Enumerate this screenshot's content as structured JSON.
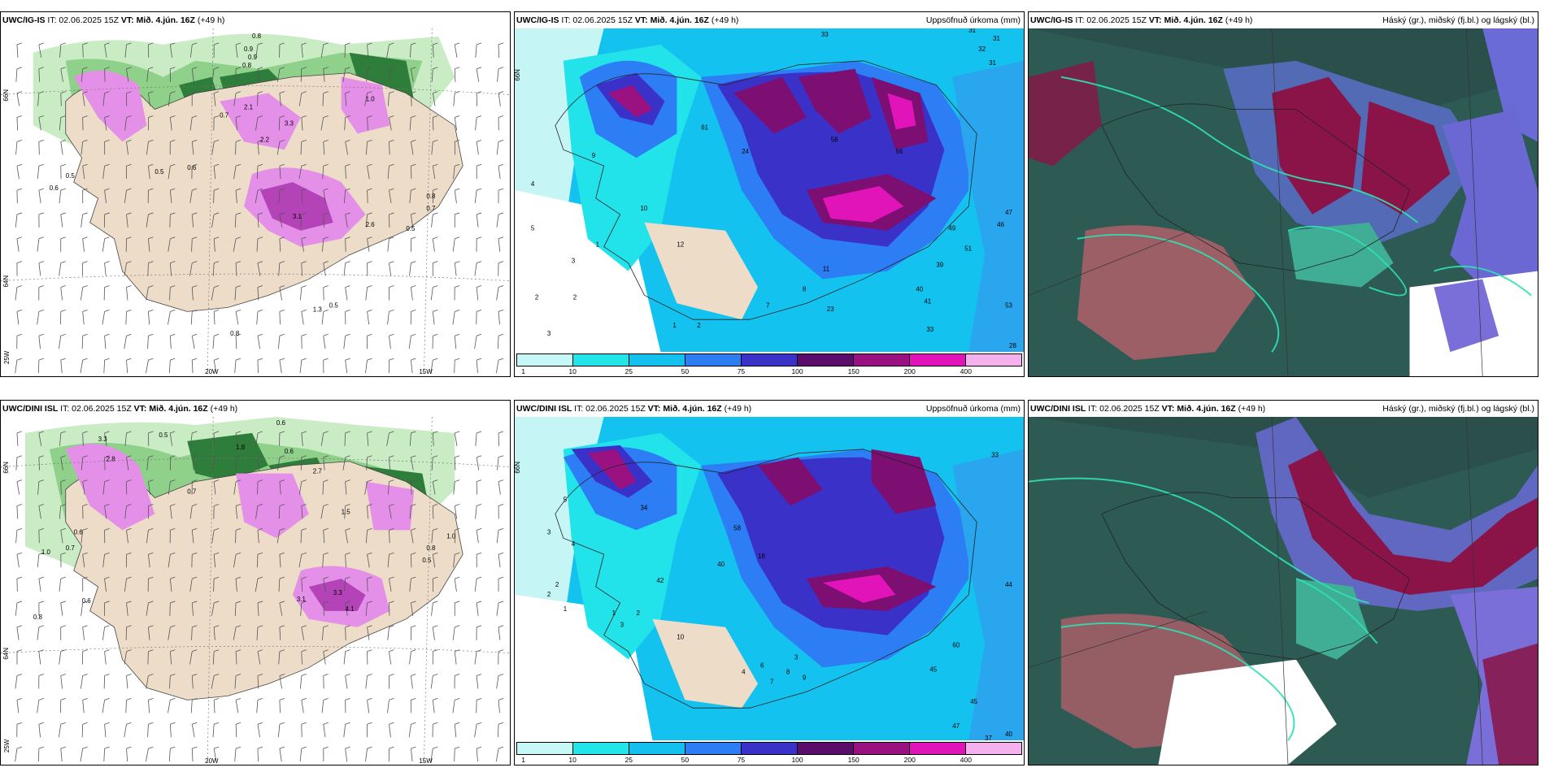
{
  "time_text": "IT: 02.06.2025 15Z",
  "valid_label": "VT: Mið. 4.jún. 16Z",
  "lead": "(+49 h)",
  "rows": [
    {
      "model": "UWC/IG-IS"
    },
    {
      "model": "UWC/DINI ISL"
    }
  ],
  "precip_title": "Uppsöfnuð úrkoma (mm)",
  "cloud_title": "Háský (gr.), miðský (fj.bl.) og lágský (bl.)",
  "axis_labels": {
    "lon_20": "20W",
    "lon_15": "15W",
    "lon_25": "25W",
    "lat_66": "66N",
    "lat_64": "64N"
  },
  "colorbar": {
    "ticks": [
      "1",
      "10",
      "25",
      "50",
      "75",
      "100",
      "150",
      "200",
      "400"
    ],
    "colors": [
      "#c8f7f7",
      "#22e5ea",
      "#14c0ee",
      "#2d7df5",
      "#3a31c8",
      "#5b0d6b",
      "#9a1282",
      "#e014b8",
      "#f5b0ee"
    ]
  },
  "wind_panel_values": {
    "row0": [
      "0.8",
      "0.9",
      "0.9",
      "0.8",
      "1.0",
      "2.1",
      "3.3",
      "2.2",
      "0.5",
      "0.6",
      "0.7",
      "0.5",
      "0.6",
      "3.1",
      "2.6",
      "0.8",
      "0.7",
      "0.5",
      "1.3",
      "0.5",
      "0.8"
    ],
    "row1": [
      "0.6",
      "0.5",
      "1.8",
      "0.6",
      "3.3",
      "2.8",
      "2.7",
      "1.5",
      "0.7",
      "1.0",
      "0.7",
      "0.6",
      "0.8",
      "0.6",
      "3.3",
      "3.1",
      "4.1",
      "0.8",
      "0.5",
      "1.0"
    ]
  },
  "precip_panel_values": {
    "row0": [
      "33",
      "31",
      "31",
      "32",
      "31",
      "58",
      "61",
      "24",
      "56",
      "47",
      "46",
      "51",
      "39",
      "40",
      "41",
      "33",
      "53",
      "49",
      "28",
      "23",
      "11",
      "8",
      "7",
      "12",
      "10",
      "9",
      "5",
      "4",
      "3",
      "2",
      "2",
      "1",
      "1",
      "2",
      "3"
    ],
    "row1": [
      "33",
      "40",
      "44",
      "60",
      "45",
      "45",
      "47",
      "37",
      "58",
      "42",
      "40",
      "34",
      "18",
      "10",
      "9",
      "8",
      "7",
      "5",
      "4",
      "3",
      "2",
      "2",
      "1",
      "1",
      "2",
      "3",
      "6",
      "4",
      "3"
    ]
  }
}
